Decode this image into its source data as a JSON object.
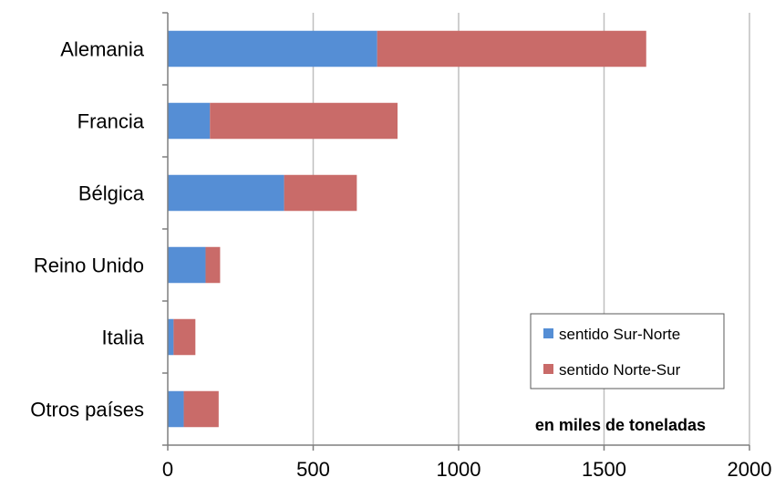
{
  "chart_data": {
    "type": "bar",
    "orientation": "horizontal",
    "stacked": true,
    "categories": [
      "Alemania",
      "Francia",
      "Bélgica",
      "Reino Unido",
      "Italia",
      "Otros países"
    ],
    "series": [
      {
        "name": "sentido Sur-Norte",
        "values": [
          720,
          145,
          400,
          130,
          20,
          55
        ],
        "color": "#558ED5"
      },
      {
        "name": "sentido Norte-Sur",
        "values": [
          925,
          645,
          250,
          50,
          75,
          120
        ],
        "color": "#C96B69"
      }
    ],
    "xlim": [
      0,
      2000
    ],
    "xticks": [
      0,
      500,
      1000,
      1500,
      2000
    ],
    "annotation": "en miles de toneladas",
    "grid": "vertical",
    "legend_position": "bottom-right"
  }
}
